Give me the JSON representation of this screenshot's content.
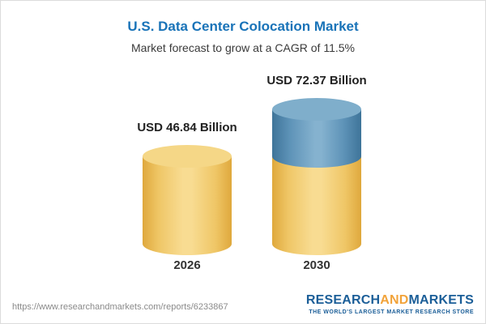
{
  "header": {
    "title": "U.S. Data Center Colocation Market",
    "subtitle": "Market forecast to grow at a CAGR of 11.5%"
  },
  "chart_data": {
    "type": "bar",
    "variant": "3d-cylinder",
    "categories": [
      "2026",
      "2030"
    ],
    "values": [
      46.84,
      72.37
    ],
    "value_labels": [
      "USD 46.84 Billion",
      "USD 72.37 Billion"
    ],
    "unit": "USD Billion",
    "title": "U.S. Data Center Colocation Market",
    "subtitle": "Market forecast to grow at a CAGR of 11.5%",
    "cagr_percent": 11.5,
    "legend_position": "none",
    "grid": false,
    "colors": {
      "bar_base": "#f2cd72",
      "bar_growth_segment": "#5e93b8",
      "title_accent": "#1973b8"
    }
  },
  "footer": {
    "url": "https://www.researchandmarkets.com/reports/6233867",
    "logo": {
      "part1": "RESEARCH",
      "part2": "AND",
      "part3": "MARKETS",
      "tagline": "THE WORLD'S LARGEST MARKET RESEARCH STORE"
    }
  }
}
